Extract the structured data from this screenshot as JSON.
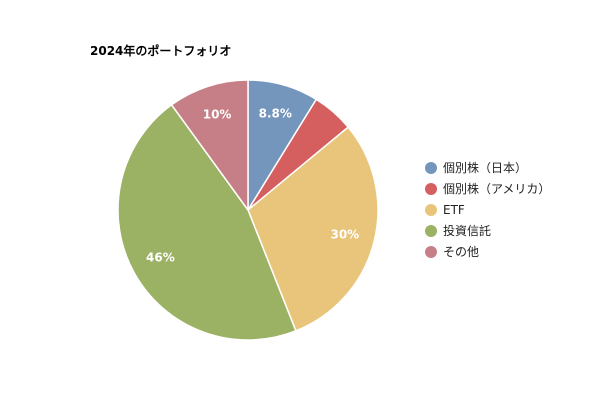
{
  "chart_data": {
    "type": "pie",
    "title": "2024年のポートフォリオ",
    "start_angle_deg": 0,
    "direction": "clockwise",
    "slices": [
      {
        "label": "個別株（日本）",
        "value": 8.8,
        "display": "8.8%",
        "color": "#7496bd"
      },
      {
        "label": "個別株（アメリカ）",
        "value": 5.2,
        "display": "",
        "color": "#d55e5e"
      },
      {
        "label": "ETF",
        "value": 30,
        "display": "30%",
        "color": "#e8c57a"
      },
      {
        "label": "投資信託",
        "value": 46,
        "display": "46%",
        "color": "#9bb164"
      },
      {
        "label": "その他",
        "value": 10,
        "display": "10%",
        "color": "#c67f86"
      }
    ],
    "legend_position": "right"
  }
}
